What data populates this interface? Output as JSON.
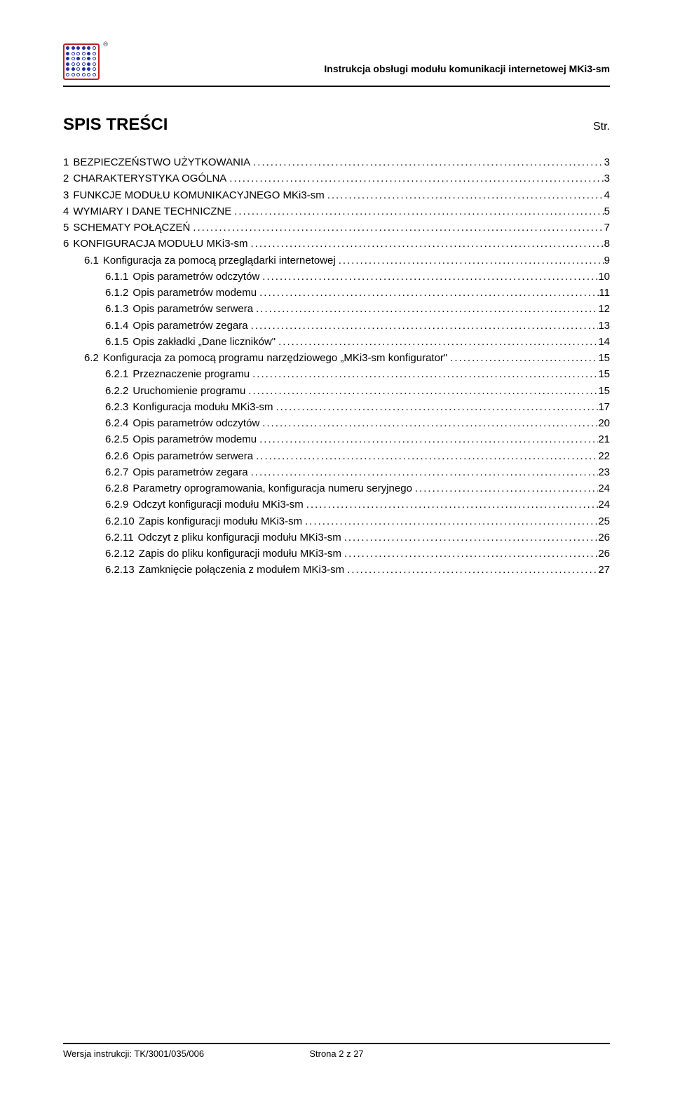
{
  "header": {
    "doc_title": "Instrukcja obsługi modułu komunikacji internetowej MKi3-sm",
    "registered_mark": "®"
  },
  "title": {
    "main": "SPIS TREŚCI",
    "right": "Str."
  },
  "toc": [
    {
      "level": 0,
      "num": "1",
      "label": "BEZPIECZEŃSTWO UŻYTKOWANIA",
      "page": "3"
    },
    {
      "level": 0,
      "num": "2",
      "label": "CHARAKTERYSTYKA OGÓLNA",
      "page": "3"
    },
    {
      "level": 0,
      "num": "3",
      "label": "FUNKCJE MODUŁU KOMUNIKACYJNEGO MKi3-sm",
      "page": "4"
    },
    {
      "level": 0,
      "num": "4",
      "label": "WYMIARY I DANE TECHNICZNE",
      "page": "5"
    },
    {
      "level": 0,
      "num": "5",
      "label": "SCHEMATY POŁĄCZEŃ",
      "page": "7"
    },
    {
      "level": 0,
      "num": "6",
      "label": "KONFIGURACJA MODUŁU MKi3-sm",
      "page": "8"
    },
    {
      "level": 1,
      "num": "6.1",
      "label": "Konfiguracja za pomocą przeglądarki internetowej",
      "page": "9"
    },
    {
      "level": 2,
      "num": "6.1.1",
      "label": "Opis parametrów odczytów",
      "page": "10"
    },
    {
      "level": 2,
      "num": "6.1.2",
      "label": "Opis parametrów modemu",
      "page": "11"
    },
    {
      "level": 2,
      "num": "6.1.3",
      "label": "Opis parametrów serwera",
      "page": "12"
    },
    {
      "level": 2,
      "num": "6.1.4",
      "label": "Opis parametrów zegara",
      "page": "13"
    },
    {
      "level": 2,
      "num": "6.1.5",
      "label": "Opis zakładki „Dane liczników\"",
      "page": "14"
    },
    {
      "level": 1,
      "num": "6.2",
      "label": "Konfiguracja za pomocą programu narzędziowego „MKi3-sm konfigurator\"",
      "page": "15"
    },
    {
      "level": 2,
      "num": "6.2.1",
      "label": "Przeznaczenie programu",
      "page": "15"
    },
    {
      "level": 2,
      "num": "6.2.2",
      "label": "Uruchomienie programu",
      "page": "15"
    },
    {
      "level": 2,
      "num": "6.2.3",
      "label": "Konfiguracja modułu MKi3-sm",
      "page": "17"
    },
    {
      "level": 2,
      "num": "6.2.4",
      "label": "Opis parametrów odczytów",
      "page": "20"
    },
    {
      "level": 2,
      "num": "6.2.5",
      "label": "Opis parametrów modemu",
      "page": "21"
    },
    {
      "level": 2,
      "num": "6.2.6",
      "label": "Opis parametrów serwera",
      "page": "22"
    },
    {
      "level": 2,
      "num": "6.2.7",
      "label": "Opis parametrów zegara",
      "page": "23"
    },
    {
      "level": 2,
      "num": "6.2.8",
      "label": "Parametry oprogramowania, konfiguracja numeru seryjnego",
      "page": "24"
    },
    {
      "level": 2,
      "num": "6.2.9",
      "label": "Odczyt konfiguracji modułu MKi3-sm",
      "page": "24"
    },
    {
      "level": 2,
      "num": "6.2.10",
      "label": "Zapis konfiguracji modułu MKi3-sm",
      "page": "25"
    },
    {
      "level": 2,
      "num": "6.2.11",
      "label": "Odczyt z pliku konfiguracji modułu MKi3-sm",
      "page": "26"
    },
    {
      "level": 2,
      "num": "6.2.12",
      "label": "Zapis do pliku konfiguracji modułu MKi3-sm",
      "page": "26"
    },
    {
      "level": 2,
      "num": "6.2.13",
      "label": "Zamknięcie połączenia z modułem MKi3-sm",
      "page": "27"
    }
  ],
  "footer": {
    "left": "Wersja instrukcji: TK/3001/035/006",
    "center": "Strona 2 z 27"
  },
  "colors": {
    "text": "#000000",
    "background": "#ffffff",
    "logo_border": "#c02020",
    "logo_dot": "#2030a0"
  },
  "logo_pattern": [
    1,
    1,
    1,
    1,
    1,
    0,
    1,
    0,
    0,
    0,
    1,
    0,
    1,
    0,
    1,
    0,
    1,
    0,
    1,
    0,
    0,
    0,
    1,
    0,
    1,
    1,
    0,
    1,
    1,
    0,
    0,
    0,
    0,
    0,
    0,
    0
  ]
}
